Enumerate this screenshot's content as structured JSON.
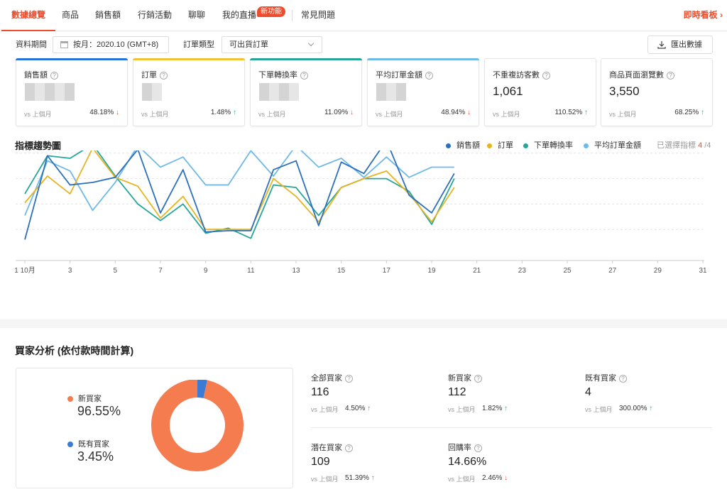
{
  "nav": {
    "tabs": [
      "數據總覽",
      "商品",
      "銷售額",
      "行銷活動",
      "聊聊",
      "我的直播",
      "常見問題"
    ],
    "new_badge": "新功能",
    "realtime": "即時看板 ›"
  },
  "filters": {
    "period_label": "資料期間",
    "period_value": "按月：2020.10 (GMT+8)",
    "order_type_label": "訂單類型",
    "order_type_value": "可出貨訂單",
    "export_label": "匯出數據"
  },
  "cards": [
    {
      "title": "銷售額",
      "value": "",
      "vs": "vs 上個月",
      "pct": "48.18%",
      "dir": "down",
      "color": "#2673dd"
    },
    {
      "title": "訂單",
      "value": "",
      "vs": "vs 上個月",
      "pct": "1.48%",
      "dir": "up",
      "color": "#f1c232"
    },
    {
      "title": "下單轉換率",
      "value": "",
      "vs": "vs 上個月",
      "pct": "11.09%",
      "dir": "down",
      "color": "#26a69a"
    },
    {
      "title": "平均訂單金額",
      "value": "",
      "vs": "vs 上個月",
      "pct": "48.94%",
      "dir": "down",
      "color": "#6fb9e6"
    },
    {
      "title": "不重複訪客數",
      "value": "1,061",
      "vs": "vs 上個月",
      "pct": "110.52%",
      "dir": "up",
      "color": ""
    },
    {
      "title": "商品頁面瀏覽數",
      "value": "3,550",
      "vs": "vs 上個月",
      "pct": "68.25%",
      "dir": "up",
      "color": ""
    }
  ],
  "arrows": {
    "up": "↑",
    "down": "↓"
  },
  "help_glyph": "?",
  "trend": {
    "title": "指標趨勢圖",
    "selected_prefix": "已選擇指標",
    "selected_count": "4",
    "selected_total": "/4"
  },
  "chart_data": {
    "type": "line",
    "title": "指標趨勢圖",
    "x_labels": [
      "1 10月",
      "3",
      "5",
      "7",
      "9",
      "11",
      "13",
      "15",
      "17",
      "19",
      "21",
      "23",
      "25",
      "27",
      "29",
      "31"
    ],
    "x_label_days": [
      1,
      3,
      5,
      7,
      9,
      11,
      13,
      15,
      17,
      19,
      21,
      23,
      25,
      27,
      29,
      31
    ],
    "x": [
      1,
      2,
      3,
      4,
      5,
      6,
      7,
      8,
      9,
      10,
      11,
      12,
      13,
      14,
      15,
      16,
      17,
      18,
      19,
      20
    ],
    "ylim": [
      0,
      100
    ],
    "grid": true,
    "legend_position": "top-right",
    "series": [
      {
        "name": "銷售額",
        "color": "#2c6fbb",
        "values": [
          12,
          78,
          55,
          57,
          61,
          83,
          33,
          67,
          18,
          19,
          19,
          67,
          74,
          23,
          73,
          64,
          90,
          47,
          33,
          64
        ]
      },
      {
        "name": "訂單",
        "color": "#e6b422",
        "values": [
          41,
          62,
          48,
          84,
          61,
          54,
          29,
          46,
          20,
          20,
          20,
          60,
          46,
          26,
          53,
          60,
          66,
          48,
          26,
          53
        ]
      },
      {
        "name": "下單轉換率",
        "color": "#26a69a",
        "values": [
          48,
          78,
          76,
          87,
          62,
          40,
          27,
          40,
          17,
          21,
          13,
          55,
          53,
          31,
          53,
          60,
          60,
          50,
          24,
          60
        ]
      },
      {
        "name": "平均訂單金額",
        "color": "#6fb9e6",
        "values": [
          31,
          74,
          66,
          35,
          57,
          86,
          69,
          77,
          55,
          55,
          82,
          62,
          86,
          69,
          76,
          61,
          77,
          61,
          69,
          69
        ]
      }
    ]
  },
  "buyers": {
    "title": "買家分析 (依付款時間計算)",
    "new_label": "新買家",
    "new_pct": "96.55%",
    "existing_label": "既有買家",
    "existing_pct": "3.45%",
    "colors": {
      "new": "#f47c4f",
      "existing": "#3a7bd5"
    },
    "pie": [
      96.55,
      3.45
    ],
    "stats": [
      {
        "title": "全部買家",
        "value": "116",
        "vs": "vs 上個月",
        "pct": "4.50%",
        "dir": "up"
      },
      {
        "title": "新買家",
        "value": "112",
        "vs": "vs 上個月",
        "pct": "1.82%",
        "dir": "up"
      },
      {
        "title": "既有買家",
        "value": "4",
        "vs": "vs 上個月",
        "pct": "300.00%",
        "dir": "up"
      },
      {
        "title": "潛在買家",
        "value": "109",
        "vs": "vs 上個月",
        "pct": "51.39%",
        "dir": "up"
      },
      {
        "title": "回購率",
        "value": "14.66%",
        "vs": "vs 上個月",
        "pct": "2.46%",
        "dir": "down"
      }
    ]
  }
}
